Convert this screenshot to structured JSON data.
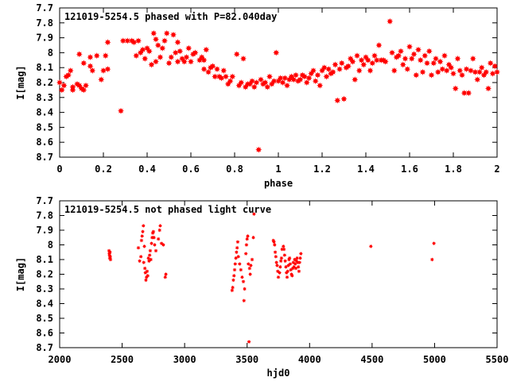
{
  "chart_data": [
    {
      "type": "scatter",
      "title": "121019-5254.5 phased with P=82.040day",
      "xlabel": "phase",
      "ylabel": "I[mag]",
      "xlim": [
        0,
        2
      ],
      "ylim": [
        7.7,
        8.7
      ],
      "y_inverted": true,
      "grid": false,
      "marker_color": "#ff0000",
      "xticks": [
        "0",
        "0.2",
        "0.4",
        "0.6",
        "0.8",
        "1",
        "1.2",
        "1.4",
        "1.6",
        "1.8",
        "2"
      ],
      "yticks": [
        "7.7",
        "7.8",
        "7.9",
        "8",
        "8.1",
        "8.2",
        "8.3",
        "8.4",
        "8.5",
        "8.6",
        "8.7"
      ],
      "points": [
        [
          0.0,
          8.2
        ],
        [
          0.01,
          8.25
        ],
        [
          0.02,
          8.22
        ],
        [
          0.03,
          8.16
        ],
        [
          0.04,
          8.15
        ],
        [
          0.05,
          8.12
        ],
        [
          0.06,
          8.23
        ],
        [
          0.06,
          8.25
        ],
        [
          0.08,
          8.21
        ],
        [
          0.09,
          8.01
        ],
        [
          0.09,
          8.22
        ],
        [
          0.1,
          8.24
        ],
        [
          0.11,
          8.25
        ],
        [
          0.11,
          8.07
        ],
        [
          0.12,
          8.22
        ],
        [
          0.14,
          8.09
        ],
        [
          0.14,
          8.03
        ],
        [
          0.15,
          8.12
        ],
        [
          0.17,
          8.02
        ],
        [
          0.19,
          8.18
        ],
        [
          0.2,
          8.12
        ],
        [
          0.21,
          8.02
        ],
        [
          0.22,
          8.11
        ],
        [
          0.22,
          7.93
        ],
        [
          0.28,
          8.39
        ],
        [
          0.29,
          7.92
        ],
        [
          0.31,
          7.92
        ],
        [
          0.33,
          7.92
        ],
        [
          0.34,
          7.93
        ],
        [
          0.35,
          8.02
        ],
        [
          0.36,
          7.92
        ],
        [
          0.37,
          8.0
        ],
        [
          0.38,
          7.98
        ],
        [
          0.39,
          8.04
        ],
        [
          0.4,
          7.97
        ],
        [
          0.41,
          7.99
        ],
        [
          0.42,
          8.08
        ],
        [
          0.43,
          7.87
        ],
        [
          0.44,
          7.91
        ],
        [
          0.44,
          8.06
        ],
        [
          0.45,
          7.95
        ],
        [
          0.46,
          8.03
        ],
        [
          0.47,
          7.97
        ],
        [
          0.48,
          7.92
        ],
        [
          0.49,
          7.87
        ],
        [
          0.5,
          8.07
        ],
        [
          0.51,
          8.03
        ],
        [
          0.52,
          7.88
        ],
        [
          0.53,
          8.0
        ],
        [
          0.54,
          8.06
        ],
        [
          0.54,
          7.93
        ],
        [
          0.55,
          7.99
        ],
        [
          0.56,
          8.04
        ],
        [
          0.57,
          8.06
        ],
        [
          0.58,
          8.03
        ],
        [
          0.59,
          7.97
        ],
        [
          0.6,
          8.06
        ],
        [
          0.61,
          8.01
        ],
        [
          0.62,
          8.0
        ],
        [
          0.64,
          8.05
        ],
        [
          0.65,
          8.03
        ],
        [
          0.66,
          8.11
        ],
        [
          0.66,
          8.05
        ],
        [
          0.67,
          7.98
        ],
        [
          0.68,
          8.13
        ],
        [
          0.69,
          8.1
        ],
        [
          0.7,
          8.09
        ],
        [
          0.71,
          8.16
        ],
        [
          0.72,
          8.11
        ],
        [
          0.73,
          8.16
        ],
        [
          0.74,
          8.17
        ],
        [
          0.75,
          8.12
        ],
        [
          0.76,
          8.16
        ],
        [
          0.77,
          8.21
        ],
        [
          0.78,
          8.19
        ],
        [
          0.79,
          8.16
        ],
        [
          0.81,
          8.01
        ],
        [
          0.82,
          8.22
        ],
        [
          0.83,
          8.2
        ],
        [
          0.84,
          8.04
        ],
        [
          0.85,
          8.23
        ],
        [
          0.86,
          8.21
        ],
        [
          0.87,
          8.21
        ],
        [
          0.88,
          8.19
        ],
        [
          0.89,
          8.23
        ],
        [
          0.9,
          8.2
        ],
        [
          0.91,
          8.65
        ],
        [
          0.92,
          8.18
        ],
        [
          0.93,
          8.21
        ],
        [
          0.94,
          8.2
        ],
        [
          0.95,
          8.23
        ],
        [
          0.96,
          8.16
        ],
        [
          0.97,
          8.21
        ],
        [
          0.98,
          8.19
        ],
        [
          0.99,
          8.0
        ],
        [
          1.0,
          8.19
        ],
        [
          1.01,
          8.17
        ],
        [
          1.02,
          8.2
        ],
        [
          1.03,
          8.17
        ],
        [
          1.04,
          8.22
        ],
        [
          1.05,
          8.18
        ],
        [
          1.06,
          8.16
        ],
        [
          1.07,
          8.18
        ],
        [
          1.08,
          8.15
        ],
        [
          1.09,
          8.19
        ],
        [
          1.1,
          8.18
        ],
        [
          1.11,
          8.15
        ],
        [
          1.12,
          8.16
        ],
        [
          1.13,
          8.2
        ],
        [
          1.14,
          8.17
        ],
        [
          1.15,
          8.14
        ],
        [
          1.16,
          8.12
        ],
        [
          1.17,
          8.19
        ],
        [
          1.18,
          8.15
        ],
        [
          1.19,
          8.22
        ],
        [
          1.2,
          8.12
        ],
        [
          1.21,
          8.1
        ],
        [
          1.22,
          8.16
        ],
        [
          1.23,
          8.11
        ],
        [
          1.24,
          8.14
        ],
        [
          1.25,
          8.13
        ],
        [
          1.26,
          8.08
        ],
        [
          1.27,
          8.32
        ],
        [
          1.28,
          8.11
        ],
        [
          1.29,
          8.07
        ],
        [
          1.3,
          8.31
        ],
        [
          1.31,
          8.1
        ],
        [
          1.32,
          8.09
        ],
        [
          1.33,
          8.04
        ],
        [
          1.34,
          8.06
        ],
        [
          1.35,
          8.18
        ],
        [
          1.36,
          8.02
        ],
        [
          1.37,
          8.12
        ],
        [
          1.38,
          8.05
        ],
        [
          1.39,
          8.08
        ],
        [
          1.4,
          8.03
        ],
        [
          1.41,
          8.05
        ],
        [
          1.42,
          8.12
        ],
        [
          1.43,
          8.07
        ],
        [
          1.44,
          8.02
        ],
        [
          1.45,
          8.05
        ],
        [
          1.46,
          7.95
        ],
        [
          1.47,
          8.05
        ],
        [
          1.48,
          8.05
        ],
        [
          1.49,
          8.06
        ],
        [
          1.51,
          7.79
        ],
        [
          1.52,
          8.0
        ],
        [
          1.53,
          8.12
        ],
        [
          1.54,
          8.03
        ],
        [
          1.55,
          8.02
        ],
        [
          1.56,
          7.99
        ],
        [
          1.57,
          8.08
        ],
        [
          1.58,
          8.04
        ],
        [
          1.59,
          8.11
        ],
        [
          1.6,
          7.96
        ],
        [
          1.61,
          8.04
        ],
        [
          1.62,
          8.01
        ],
        [
          1.63,
          8.15
        ],
        [
          1.64,
          7.98
        ],
        [
          1.65,
          8.05
        ],
        [
          1.66,
          8.13
        ],
        [
          1.67,
          8.02
        ],
        [
          1.68,
          8.07
        ],
        [
          1.69,
          7.99
        ],
        [
          1.7,
          8.15
        ],
        [
          1.71,
          8.07
        ],
        [
          1.72,
          8.04
        ],
        [
          1.73,
          8.13
        ],
        [
          1.74,
          8.06
        ],
        [
          1.75,
          8.11
        ],
        [
          1.76,
          8.02
        ],
        [
          1.77,
          8.12
        ],
        [
          1.78,
          8.08
        ],
        [
          1.79,
          8.1
        ],
        [
          1.8,
          8.14
        ],
        [
          1.81,
          8.24
        ],
        [
          1.82,
          8.04
        ],
        [
          1.83,
          8.12
        ],
        [
          1.84,
          8.15
        ],
        [
          1.85,
          8.27
        ],
        [
          1.86,
          8.11
        ],
        [
          1.87,
          8.27
        ],
        [
          1.88,
          8.12
        ],
        [
          1.89,
          8.04
        ],
        [
          1.9,
          8.13
        ],
        [
          1.91,
          8.18
        ],
        [
          1.92,
          8.13
        ],
        [
          1.93,
          8.1
        ],
        [
          1.94,
          8.15
        ],
        [
          1.95,
          8.13
        ],
        [
          1.96,
          8.24
        ],
        [
          1.97,
          8.07
        ],
        [
          1.98,
          8.14
        ],
        [
          1.99,
          8.09
        ],
        [
          2.0,
          8.13
        ]
      ]
    },
    {
      "type": "scatter",
      "title": "121019-5254.5 not phased light curve",
      "xlabel": "hjd0",
      "ylabel": "I[mag]",
      "xlim": [
        2000,
        5500
      ],
      "ylim": [
        7.7,
        8.7
      ],
      "y_inverted": true,
      "grid": false,
      "marker_color": "#ff0000",
      "xticks": [
        "2000",
        "2500",
        "3000",
        "3500",
        "4000",
        "4500",
        "5000",
        "5500"
      ],
      "yticks": [
        "7.7",
        "7.8",
        "7.9",
        "8",
        "8.1",
        "8.2",
        "8.3",
        "8.4",
        "8.5",
        "8.6",
        "8.7"
      ],
      "points": [
        [
          2395,
          8.04
        ],
        [
          2397,
          8.06
        ],
        [
          2399,
          8.07
        ],
        [
          2401,
          8.09
        ],
        [
          2403,
          8.05
        ],
        [
          2405,
          8.08
        ],
        [
          2407,
          8.1
        ],
        [
          2630,
          8.02
        ],
        [
          2640,
          8.11
        ],
        [
          2650,
          8.08
        ],
        [
          2655,
          7.97
        ],
        [
          2660,
          7.94
        ],
        [
          2665,
          7.91
        ],
        [
          2670,
          7.87
        ],
        [
          2673,
          8.12
        ],
        [
          2678,
          8.01
        ],
        [
          2682,
          8.16
        ],
        [
          2686,
          8.19
        ],
        [
          2690,
          8.24
        ],
        [
          2695,
          8.22
        ],
        [
          2700,
          8.18
        ],
        [
          2705,
          8.21
        ],
        [
          2710,
          8.09
        ],
        [
          2715,
          8.11
        ],
        [
          2720,
          8.07
        ],
        [
          2725,
          8.04
        ],
        [
          2730,
          8.1
        ],
        [
          2735,
          7.99
        ],
        [
          2740,
          7.95
        ],
        [
          2745,
          7.92
        ],
        [
          2750,
          7.91
        ],
        [
          2755,
          7.95
        ],
        [
          2760,
          8.0
        ],
        [
          2770,
          8.04
        ],
        [
          2790,
          7.96
        ],
        [
          2800,
          7.9
        ],
        [
          2805,
          7.87
        ],
        [
          2815,
          7.99
        ],
        [
          2830,
          8.0
        ],
        [
          2845,
          8.22
        ],
        [
          2850,
          8.2
        ],
        [
          3380,
          8.31
        ],
        [
          3385,
          8.29
        ],
        [
          3390,
          8.24
        ],
        [
          3395,
          8.21
        ],
        [
          3400,
          8.17
        ],
        [
          3405,
          8.13
        ],
        [
          3410,
          8.09
        ],
        [
          3415,
          8.05
        ],
        [
          3420,
          8.02
        ],
        [
          3425,
          7.98
        ],
        [
          3430,
          8.08
        ],
        [
          3440,
          8.13
        ],
        [
          3450,
          8.17
        ],
        [
          3460,
          8.22
        ],
        [
          3470,
          8.25
        ],
        [
          3475,
          8.38
        ],
        [
          3480,
          8.3
        ],
        [
          3490,
          8.06
        ],
        [
          3495,
          8.0
        ],
        [
          3500,
          7.96
        ],
        [
          3505,
          7.94
        ],
        [
          3510,
          8.13
        ],
        [
          3515,
          8.66
        ],
        [
          3520,
          8.16
        ],
        [
          3525,
          8.2
        ],
        [
          3530,
          8.14
        ],
        [
          3540,
          8.1
        ],
        [
          3550,
          7.95
        ],
        [
          3555,
          7.79
        ],
        [
          3710,
          7.97
        ],
        [
          3715,
          7.98
        ],
        [
          3720,
          8.0
        ],
        [
          3725,
          8.05
        ],
        [
          3730,
          8.08
        ],
        [
          3735,
          8.12
        ],
        [
          3740,
          8.14
        ],
        [
          3745,
          8.18
        ],
        [
          3750,
          8.22
        ],
        [
          3760,
          8.19
        ],
        [
          3765,
          8.15
        ],
        [
          3770,
          8.11
        ],
        [
          3775,
          8.09
        ],
        [
          3780,
          8.03
        ],
        [
          3790,
          8.01
        ],
        [
          3795,
          8.03
        ],
        [
          3800,
          8.07
        ],
        [
          3805,
          8.11
        ],
        [
          3810,
          8.15
        ],
        [
          3815,
          8.19
        ],
        [
          3820,
          8.22
        ],
        [
          3825,
          8.18
        ],
        [
          3830,
          8.14
        ],
        [
          3835,
          8.1
        ],
        [
          3840,
          8.09
        ],
        [
          3845,
          8.13
        ],
        [
          3850,
          8.17
        ],
        [
          3855,
          8.2
        ],
        [
          3860,
          8.21
        ],
        [
          3865,
          8.16
        ],
        [
          3870,
          8.12
        ],
        [
          3875,
          8.15
        ],
        [
          3880,
          8.1
        ],
        [
          3885,
          8.13
        ],
        [
          3890,
          8.16
        ],
        [
          3895,
          8.11
        ],
        [
          3900,
          8.09
        ],
        [
          3905,
          8.12
        ],
        [
          3910,
          8.15
        ],
        [
          3915,
          8.18
        ],
        [
          3920,
          8.12
        ],
        [
          3925,
          8.09
        ],
        [
          3930,
          8.06
        ],
        [
          4490,
          8.01
        ],
        [
          4980,
          8.1
        ],
        [
          4995,
          7.99
        ]
      ]
    }
  ]
}
